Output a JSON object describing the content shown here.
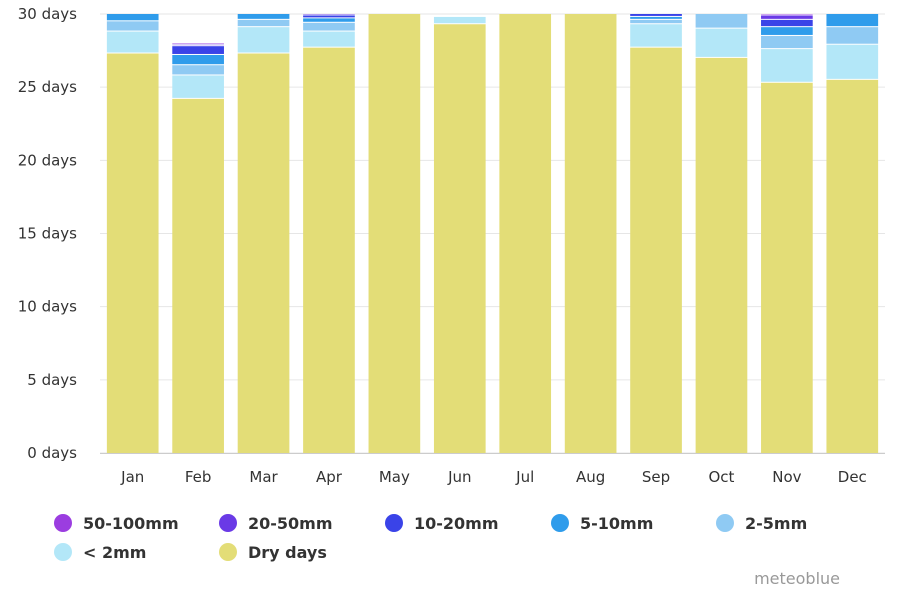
{
  "chart_data": {
    "type": "bar",
    "stacked": true,
    "categories": [
      "Jan",
      "Feb",
      "Mar",
      "Apr",
      "May",
      "Jun",
      "Jul",
      "Aug",
      "Sep",
      "Oct",
      "Nov",
      "Dec"
    ],
    "ylim": [
      0,
      30
    ],
    "y_ticks": [
      0,
      5,
      10,
      15,
      20,
      25,
      30
    ],
    "y_tick_suffix": " days",
    "grid": true,
    "legend_position": "bottom",
    "series": [
      {
        "name": "Dry days",
        "color": "#e3dd77",
        "values": [
          27.3,
          24.2,
          27.3,
          27.7,
          30,
          29.3,
          30,
          30,
          27.7,
          27.0,
          25.3,
          25.5
        ]
      },
      {
        "name": "< 2mm",
        "color": "#b3e7f8",
        "values": [
          1.5,
          1.6,
          1.8,
          1.1,
          0,
          0.5,
          0,
          0,
          1.6,
          2.0,
          2.3,
          2.4
        ]
      },
      {
        "name": "2-5mm",
        "color": "#8fcaf3",
        "values": [
          0.7,
          0.7,
          0.5,
          0.6,
          0,
          0,
          0,
          0,
          0.3,
          1.0,
          0.9,
          1.2
        ]
      },
      {
        "name": "5-10mm",
        "color": "#2f9ceb",
        "values": [
          0.5,
          0.7,
          0.4,
          0.3,
          0,
          0,
          0,
          0,
          0.2,
          0,
          0.6,
          0.9
        ]
      },
      {
        "name": "10-20mm",
        "color": "#3a43e8",
        "values": [
          0,
          0.6,
          0,
          0.2,
          0,
          0,
          0,
          0,
          0.2,
          0,
          0.5,
          0
        ]
      },
      {
        "name": "20-50mm",
        "color": "#6a3ae6",
        "values": [
          0,
          0.1,
          0,
          0.1,
          0,
          0,
          0,
          0,
          0,
          0,
          0.3,
          0
        ]
      },
      {
        "name": "50-100mm",
        "color": "#9b3de0",
        "values": [
          0,
          0.1,
          0,
          0,
          0,
          0,
          0,
          0,
          0,
          0,
          0.1,
          0
        ]
      }
    ]
  },
  "legend": [
    {
      "label": "50-100mm",
      "color": "#9b3de0"
    },
    {
      "label": "20-50mm",
      "color": "#6a3ae6"
    },
    {
      "label": "10-20mm",
      "color": "#3a43e8"
    },
    {
      "label": "5-10mm",
      "color": "#2f9ceb"
    },
    {
      "label": "2-5mm",
      "color": "#8fcaf3"
    },
    {
      "label": "< 2mm",
      "color": "#b3e7f8"
    },
    {
      "label": "Dry days",
      "color": "#e3dd77"
    }
  ],
  "credit": "meteoblue"
}
